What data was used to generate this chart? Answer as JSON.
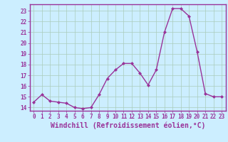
{
  "x": [
    0,
    1,
    2,
    3,
    4,
    5,
    6,
    7,
    8,
    9,
    10,
    11,
    12,
    13,
    14,
    15,
    16,
    17,
    18,
    19,
    20,
    21,
    22,
    23
  ],
  "y": [
    14.5,
    15.2,
    14.6,
    14.5,
    14.4,
    14.0,
    13.9,
    14.0,
    15.2,
    16.7,
    17.5,
    18.1,
    18.1,
    17.2,
    16.1,
    17.5,
    21.0,
    23.2,
    23.2,
    22.5,
    19.2,
    15.3,
    15.0,
    15.0
  ],
  "line_color": "#993399",
  "marker": "D",
  "marker_size": 2.0,
  "linewidth": 1.0,
  "xlabel": "Windchill (Refroidissement éolien,°C)",
  "xlabel_fontsize": 7,
  "ytick_labels": [
    "14",
    "15",
    "16",
    "17",
    "18",
    "19",
    "20",
    "21",
    "22",
    "23"
  ],
  "yticks": [
    14,
    15,
    16,
    17,
    18,
    19,
    20,
    21,
    22,
    23
  ],
  "xticks": [
    0,
    1,
    2,
    3,
    4,
    5,
    6,
    7,
    8,
    9,
    10,
    11,
    12,
    13,
    14,
    15,
    16,
    17,
    18,
    19,
    20,
    21,
    22,
    23
  ],
  "xtick_labels": [
    "0",
    "1",
    "2",
    "3",
    "4",
    "5",
    "6",
    "7",
    "8",
    "9",
    "10",
    "11",
    "12",
    "13",
    "14",
    "15",
    "16",
    "17",
    "18",
    "19",
    "20",
    "21",
    "22",
    "23"
  ],
  "ylim": [
    13.7,
    23.6
  ],
  "xlim": [
    -0.5,
    23.5
  ],
  "bg_color": "#cceeff",
  "grid_color": "#aaccbb",
  "line_border_color": "#660066",
  "tick_color": "#993399",
  "tick_fontsize": 5.5,
  "spine_color": "#993399"
}
